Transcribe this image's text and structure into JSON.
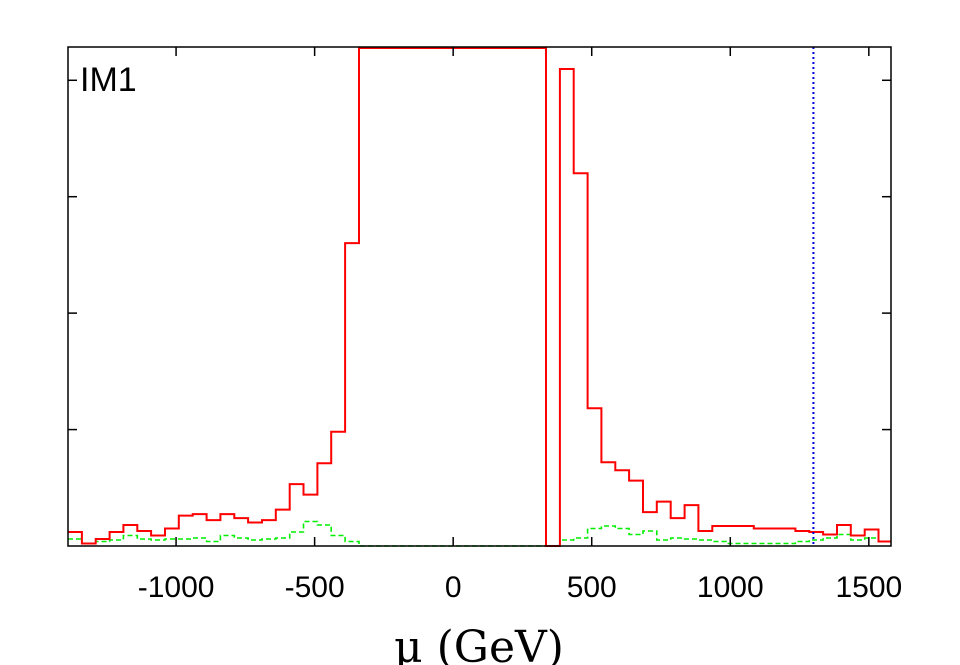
{
  "chart_data": {
    "type": "line",
    "title": "",
    "panel_label": "IM1",
    "xlabel": "μ (GeV)",
    "ylabel": "",
    "xlim": [
      -1390,
      1580
    ],
    "ylim": [
      0,
      1
    ],
    "xticks": [
      -1000,
      -500,
      0,
      500,
      1000,
      1500
    ],
    "xtick_labels": [
      "-1000",
      "-500",
      "0",
      "500",
      "1000",
      "1500"
    ],
    "yticks": [
      0.2333,
      0.4667,
      0.7,
      0.9333
    ],
    "grid": false,
    "legend": "none",
    "series": [
      {
        "style": "solid-step",
        "color": "#ff0000",
        "x": [
          -1390,
          -1340,
          -1290,
          -1240,
          -1190,
          -1140,
          -1090,
          -1040,
          -990,
          -940,
          -890,
          -840,
          -790,
          -740,
          -690,
          -640,
          -590,
          -540,
          -490,
          -440,
          -390,
          -340,
          335,
          385,
          435,
          485,
          535,
          585,
          635,
          685,
          735,
          785,
          835,
          885,
          935,
          985,
          1035,
          1085,
          1135,
          1185,
          1235,
          1285,
          1335,
          1385,
          1435,
          1485,
          1535
        ],
        "y": [
          0.028,
          0.005,
          0.014,
          0.028,
          0.042,
          0.03,
          0.021,
          0.035,
          0.061,
          0.064,
          0.052,
          0.064,
          0.056,
          0.047,
          0.052,
          0.073,
          0.124,
          0.103,
          0.166,
          0.229,
          0.607,
          0.998,
          0.0,
          0.956,
          0.747,
          0.276,
          0.168,
          0.152,
          0.131,
          0.068,
          0.089,
          0.056,
          0.082,
          0.03,
          0.04,
          0.04,
          0.04,
          0.035,
          0.035,
          0.035,
          0.03,
          0.028,
          0.023,
          0.042,
          0.021,
          0.033,
          0.009
        ]
      },
      {
        "style": "dashed-step",
        "color": "#00ee00",
        "x": [
          -1390,
          -1340,
          -1290,
          -1240,
          -1190,
          -1140,
          -1090,
          -1040,
          -990,
          -940,
          -890,
          -840,
          -790,
          -740,
          -690,
          -640,
          -590,
          -540,
          -490,
          -440,
          -390,
          -340,
          335,
          385,
          435,
          485,
          535,
          585,
          635,
          685,
          735,
          785,
          835,
          885,
          935,
          985,
          1035,
          1085,
          1135,
          1185,
          1235,
          1285,
          1335,
          1385,
          1435,
          1485,
          1535
        ],
        "y": [
          0.014,
          0.005,
          0.009,
          0.012,
          0.021,
          0.014,
          0.012,
          0.014,
          0.014,
          0.016,
          0.009,
          0.021,
          0.016,
          0.012,
          0.014,
          0.016,
          0.028,
          0.049,
          0.042,
          0.021,
          0.009,
          0.0,
          0.0,
          0.012,
          0.016,
          0.035,
          0.04,
          0.035,
          0.023,
          0.03,
          0.012,
          0.016,
          0.014,
          0.012,
          0.009,
          0.005,
          0.005,
          0.005,
          0.005,
          0.005,
          0.009,
          0.012,
          0.016,
          0.023,
          0.012,
          0.016,
          0.009
        ]
      }
    ],
    "vline": {
      "x": 1300,
      "color": "#0000dd",
      "style": "dotted"
    }
  }
}
